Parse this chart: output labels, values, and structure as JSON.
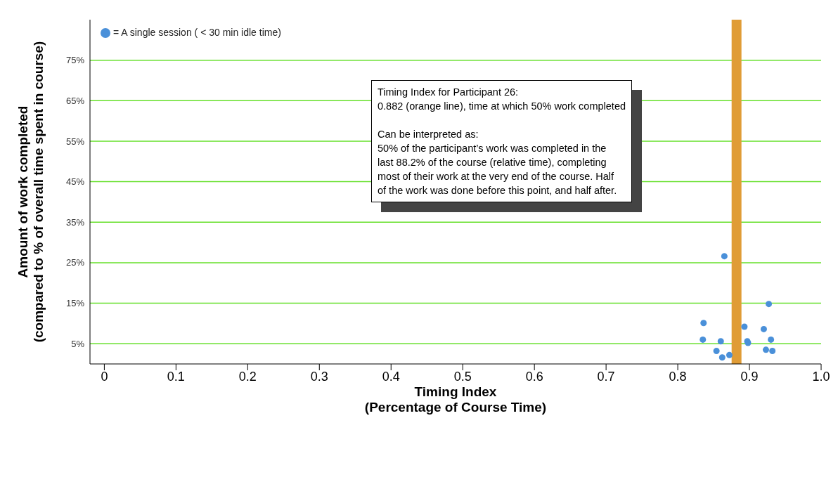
{
  "chart_data": {
    "type": "scatter",
    "xlabel": "Timing Index\n(Percentage of Course Time)",
    "ylabel": "Amount of work completed\n(compared to % of overall time spent in course)",
    "series": [
      {
        "name": "= A single session ( < 30 min idle time)",
        "color": "#4a90d9",
        "x": [
          0.865,
          0.927,
          0.836,
          0.893,
          0.92,
          0.835,
          0.86,
          0.897,
          0.898,
          0.93,
          0.854,
          0.872,
          0.862,
          0.923,
          0.932
        ],
        "values": [
          26.6,
          14.8,
          10.1,
          9.2,
          8.6,
          6.0,
          5.6,
          5.6,
          5.2,
          6.0,
          3.2,
          2.2,
          1.6,
          3.5,
          3.2
        ]
      }
    ],
    "xlim": [
      -0.02,
      1.0
    ],
    "xticks": [
      0,
      0.1,
      0.2,
      0.3,
      0.4,
      0.5,
      0.6,
      0.7,
      0.8,
      0.9,
      {
        "value": 1.0,
        "label": "1.0"
      }
    ],
    "ylim": [
      0,
      85
    ],
    "yticks": [
      {
        "value": 5,
        "label": "5%"
      },
      {
        "value": 15,
        "label": "15%"
      },
      {
        "value": 25,
        "label": "25%"
      },
      {
        "value": 35,
        "label": "35%"
      },
      {
        "value": 45,
        "label": "45%"
      },
      {
        "value": 55,
        "label": "55%"
      },
      {
        "value": 65,
        "label": "65%"
      },
      {
        "value": 75,
        "label": "75%"
      }
    ],
    "ref_lines": [
      {
        "axis": "x",
        "value": 0.882,
        "color": "#e09c36"
      }
    ],
    "annotations": [
      "Timing Index for Participant 26:\n0.882 (orange line), time at which 50% work completed\n\nCan be interpreted as:\n50% of the participant’s work was completed in the\nlast 88.2% of the course (relative time), completing\nmost of their work at the very end of the course. Half\nof the work was done before this point, and half after."
    ],
    "grid": "y",
    "legend": "top left",
    "marker": "circle"
  }
}
